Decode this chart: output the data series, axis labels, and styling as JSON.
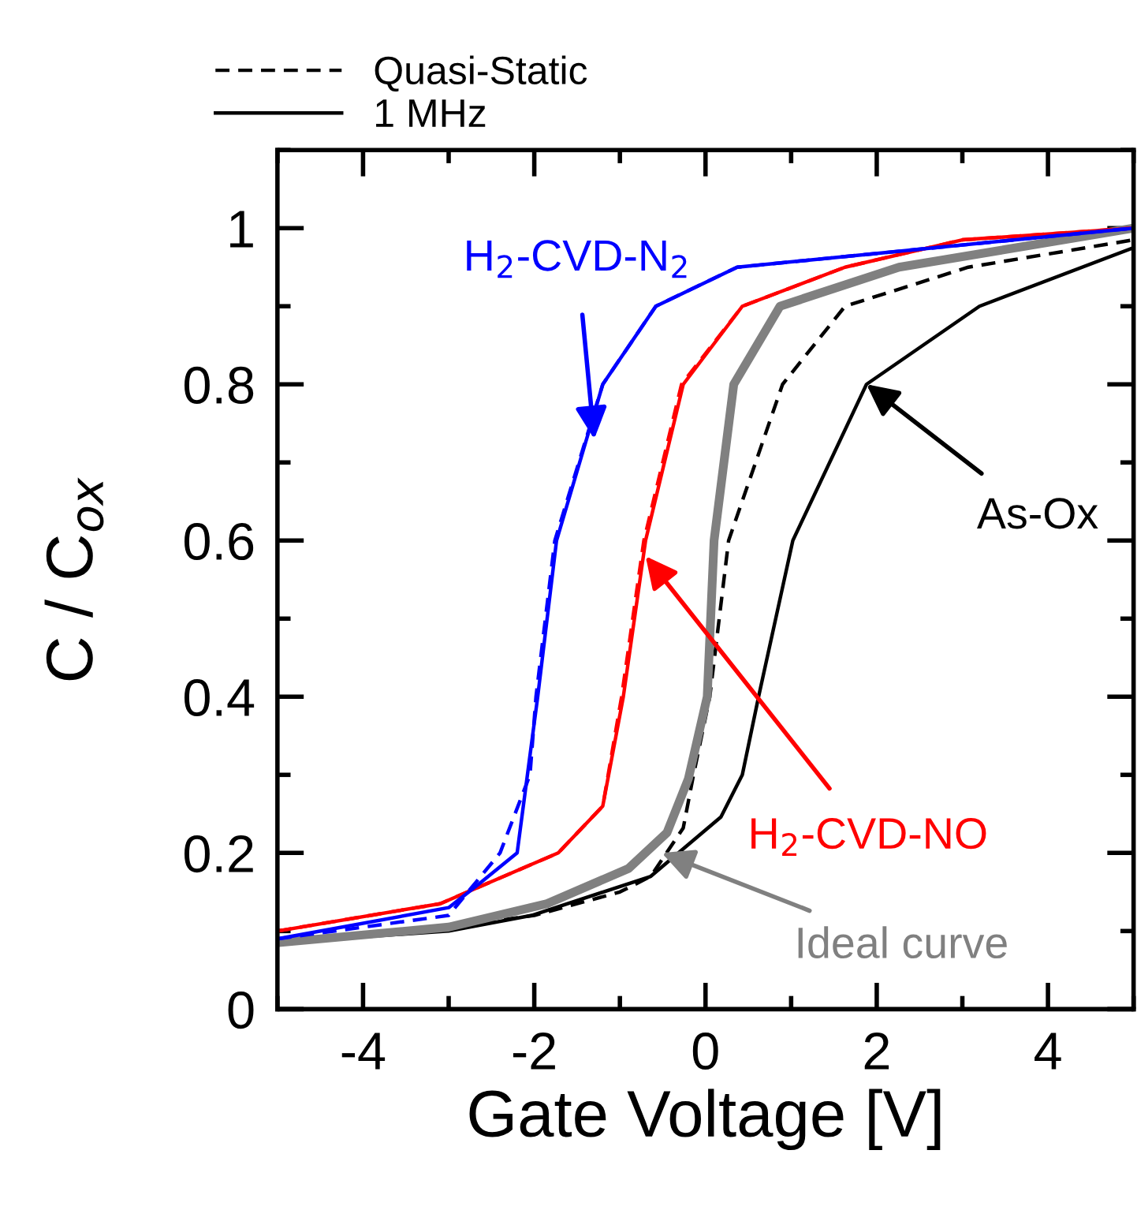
{
  "chart_data": {
    "type": "line",
    "xlabel": "Gate Voltage [V]",
    "ylabel": "C / C$_{ox}$",
    "xlim": [
      -5,
      5
    ],
    "xticks": [
      -4,
      -2,
      0,
      2,
      4
    ],
    "ylim": [
      0,
      1.1
    ],
    "yticks": [
      0,
      0.2,
      0.4,
      0.6,
      0.8,
      1
    ],
    "grid": false,
    "legend": "top",
    "marker": "none",
    "series": [
      {
        "name": "Quasi-Static",
        "color": "#000000",
        "line_style": "dashed",
        "x": [
          -5,
          -3,
          -2,
          -1,
          -0.64,
          -0.26,
          -0.14,
          0.05,
          0.27,
          0.9,
          1.63,
          3.07,
          5
        ],
        "values": [
          0.085,
          0.105,
          0.12,
          0.15,
          0.17,
          0.232,
          0.3,
          0.4,
          0.6,
          0.8,
          0.9,
          0.95,
          0.985
        ]
      },
      {
        "name": "1 MHz",
        "color": "#000000",
        "line_style": "solid",
        "x": [
          -5,
          -3,
          -2.03,
          -0.64,
          0.18,
          0.43,
          0.62,
          1.02,
          1.88,
          3.2,
          5
        ],
        "values": [
          0.085,
          0.1,
          0.12,
          0.17,
          0.246,
          0.3,
          0.4,
          0.6,
          0.8,
          0.9,
          0.975
        ]
      },
      {
        "color": "#808080",
        "line_style": "solid",
        "x": [
          -5,
          -3,
          -1.85,
          -0.9,
          -0.45,
          -0.2,
          0.02,
          0.1,
          0.33,
          0.87,
          2.26,
          5
        ],
        "values": [
          0.085,
          0.105,
          0.135,
          0.18,
          0.226,
          0.295,
          0.4,
          0.6,
          0.8,
          0.9,
          0.95,
          1.0
        ]
      },
      {
        "color": "#ff0000",
        "line_style": "dashed",
        "x": [
          -5,
          -3.1,
          -1.72,
          -1.2,
          -0.98,
          -0.72,
          -0.28,
          0.43,
          1.63,
          3,
          5
        ],
        "values": [
          0.1,
          0.135,
          0.2,
          0.26,
          0.4,
          0.6,
          0.8,
          0.9,
          0.95,
          0.985,
          1.0
        ]
      },
      {
        "color": "#ff0000",
        "line_style": "solid",
        "x": [
          -5,
          -3.1,
          -1.72,
          -1.2,
          -0.96,
          -0.7,
          -0.26,
          0.43,
          1.63,
          3,
          5
        ],
        "values": [
          0.1,
          0.135,
          0.2,
          0.26,
          0.4,
          0.6,
          0.8,
          0.9,
          0.95,
          0.985,
          1.0
        ]
      },
      {
        "color": "#0000ff",
        "line_style": "dashed",
        "x": [
          -5,
          -3,
          -2.4,
          -2.05,
          -1.98,
          -1.76,
          -1.2,
          -0.58,
          0.37,
          5
        ],
        "values": [
          0.09,
          0.12,
          0.2,
          0.3,
          0.4,
          0.6,
          0.8,
          0.9,
          0.95,
          1.0
        ]
      },
      {
        "color": "#0000ff",
        "line_style": "solid",
        "x": [
          -5,
          -3,
          -2.65,
          -2.2,
          -1.96,
          -1.74,
          -1.2,
          -0.58,
          0.37,
          5
        ],
        "values": [
          0.09,
          0.13,
          0.16,
          0.2,
          0.4,
          0.6,
          0.8,
          0.9,
          0.95,
          1.0
        ]
      }
    ],
    "annotations": [
      {
        "text": "H$_{2}$-CVD-N$_{2}$",
        "x": -1.3,
        "y": 0.73
      },
      {
        "text": "As-Ox",
        "x": 1.88,
        "y": 0.8
      },
      {
        "text": "H$_{2}$-CVD-NO",
        "x": -0.7,
        "y": 0.58
      },
      {
        "text": "Ideal curve",
        "x": -0.51,
        "y": 0.2
      }
    ]
  }
}
